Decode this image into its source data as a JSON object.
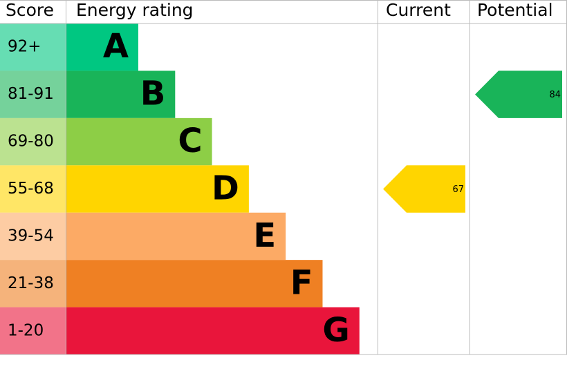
{
  "chart_data": {
    "type": "epc",
    "headers": [
      "Score",
      "Energy rating",
      "Current",
      "Potential"
    ],
    "bands": [
      {
        "score": "92+",
        "letter": "A",
        "color": "#00c781"
      },
      {
        "score": "81-91",
        "letter": "B",
        "color": "#19b459"
      },
      {
        "score": "69-80",
        "letter": "C",
        "color": "#8dce46"
      },
      {
        "score": "55-68",
        "letter": "D",
        "color": "#ffd500"
      },
      {
        "score": "39-54",
        "letter": "E",
        "color": "#fcaa65"
      },
      {
        "score": "21-38",
        "letter": "F",
        "color": "#ef8023"
      },
      {
        "score": "1-20",
        "letter": "G",
        "color": "#e9153b"
      }
    ],
    "current": 67,
    "potential": 84
  }
}
